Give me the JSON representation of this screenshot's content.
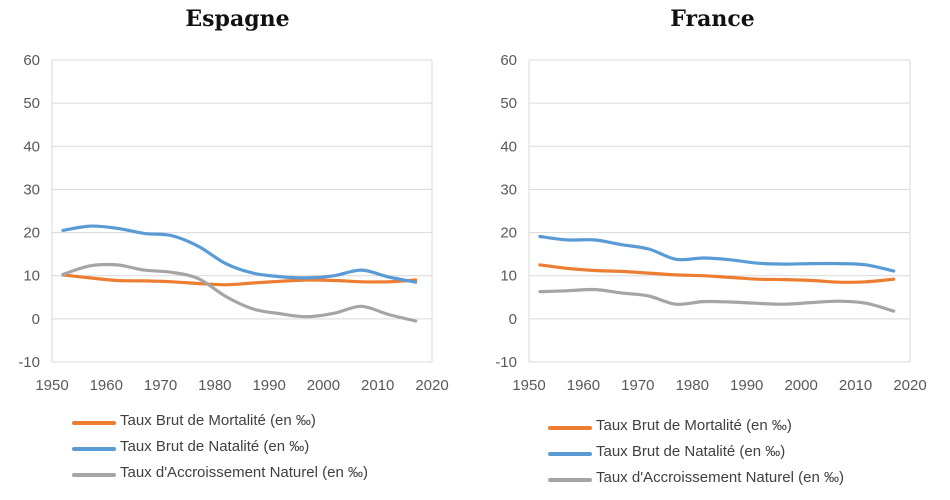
{
  "chart_data": [
    {
      "type": "line",
      "title": "Espagne",
      "xlim": [
        1950,
        2020
      ],
      "ylim": [
        -10,
        60
      ],
      "x_ticks": [
        1950,
        1960,
        1970,
        1980,
        1990,
        2000,
        2010,
        2020
      ],
      "y_ticks": [
        -10,
        0,
        10,
        20,
        30,
        40,
        50,
        60
      ],
      "grid": "horizontal",
      "legend_position": "bottom",
      "series": [
        {
          "name": "Taux Brut de Mortalité (en ‰)",
          "color": "#ED7D31",
          "x": [
            1952,
            1957,
            1962,
            1967,
            1972,
            1977,
            1982,
            1987,
            1992,
            1997,
            2002,
            2007,
            2012,
            2017
          ],
          "y": [
            10.2,
            9.5,
            8.9,
            8.8,
            8.6,
            8.2,
            7.9,
            8.3,
            8.7,
            9.0,
            8.9,
            8.6,
            8.6,
            9.0
          ]
        },
        {
          "name": "Taux Brut de Natalité (en ‰)",
          "color": "#5B9BD5",
          "x": [
            1952,
            1957,
            1962,
            1967,
            1972,
            1977,
            1982,
            1987,
            1992,
            1997,
            2002,
            2007,
            2012,
            2017
          ],
          "y": [
            20.5,
            21.5,
            21.0,
            19.8,
            19.3,
            16.8,
            12.8,
            10.6,
            9.8,
            9.5,
            10.0,
            11.3,
            9.7,
            8.5
          ]
        },
        {
          "name": "Taux d'Accroissement Naturel (en ‰)",
          "color": "#A5A5A5",
          "x": [
            1952,
            1957,
            1962,
            1967,
            1972,
            1977,
            1982,
            1987,
            1992,
            1997,
            2002,
            2007,
            2012,
            2017
          ],
          "y": [
            10.3,
            12.3,
            12.5,
            11.3,
            10.8,
            9.3,
            5.2,
            2.3,
            1.2,
            0.5,
            1.3,
            2.9,
            1.0,
            -0.5
          ]
        }
      ]
    },
    {
      "type": "line",
      "title": "France",
      "xlim": [
        1950,
        2020
      ],
      "ylim": [
        -10,
        60
      ],
      "x_ticks": [
        1950,
        1960,
        1970,
        1980,
        1990,
        2000,
        2010,
        2020
      ],
      "y_ticks": [
        -10,
        0,
        10,
        20,
        30,
        40,
        50,
        60
      ],
      "grid": "horizontal",
      "legend_position": "bottom",
      "series": [
        {
          "name": "Taux Brut de Mortalité (en ‰)",
          "color": "#ED7D31",
          "x": [
            1952,
            1957,
            1962,
            1967,
            1972,
            1977,
            1982,
            1987,
            1992,
            1997,
            2002,
            2007,
            2012,
            2017
          ],
          "y": [
            12.5,
            11.7,
            11.2,
            11.0,
            10.6,
            10.2,
            10.0,
            9.6,
            9.2,
            9.1,
            8.9,
            8.5,
            8.6,
            9.2
          ]
        },
        {
          "name": "Taux Brut de Natalité (en ‰)",
          "color": "#5B9BD5",
          "x": [
            1952,
            1957,
            1962,
            1967,
            1972,
            1977,
            1982,
            1987,
            1992,
            1997,
            2002,
            2007,
            2012,
            2017
          ],
          "y": [
            19.1,
            18.3,
            18.3,
            17.2,
            16.2,
            13.8,
            14.1,
            13.7,
            12.9,
            12.7,
            12.8,
            12.8,
            12.5,
            11.1
          ]
        },
        {
          "name": "Taux d'Accroissement Naturel (en ‰)",
          "color": "#A5A5A5",
          "x": [
            1952,
            1957,
            1962,
            1967,
            1972,
            1977,
            1982,
            1987,
            1992,
            1997,
            2002,
            2007,
            2012,
            2017
          ],
          "y": [
            6.3,
            6.5,
            6.8,
            6.0,
            5.3,
            3.4,
            4.0,
            3.9,
            3.6,
            3.4,
            3.8,
            4.1,
            3.6,
            1.8
          ]
        }
      ]
    }
  ]
}
